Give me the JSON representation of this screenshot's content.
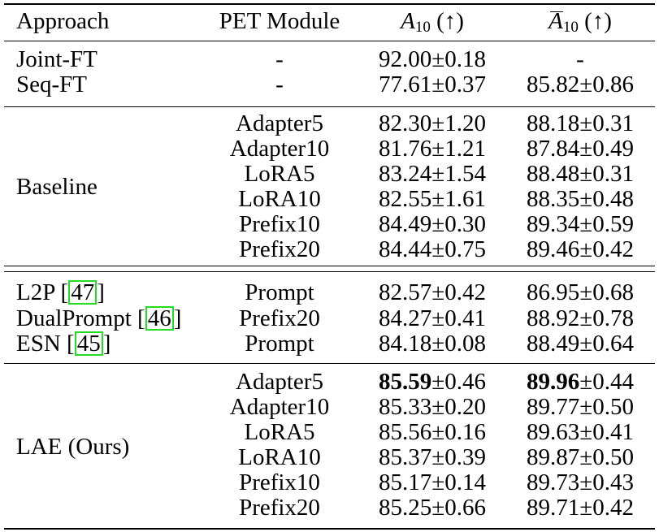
{
  "table": {
    "headers": {
      "approach": "Approach",
      "pet_module": "PET Module",
      "a10_letter": "A",
      "a10_sub": "10",
      "a10_arrow": "(↑)",
      "abar10_letter": "A",
      "abar10_sub": "10",
      "abar10_arrow": "(↑)"
    },
    "groups": [
      {
        "label": "",
        "rows": [
          {
            "approach": "Joint-FT",
            "module": "-",
            "a10_mean": "92.00",
            "a10_std": "0.18",
            "abar10": "-"
          },
          {
            "approach": "Seq-FT",
            "module": "-",
            "a10_mean": "77.61",
            "a10_std": "0.37",
            "abar10_mean": "85.82",
            "abar10_std": "0.86"
          }
        ]
      },
      {
        "label": "Baseline",
        "rows": [
          {
            "module": "Adapter5",
            "a10_mean": "82.30",
            "a10_std": "1.20",
            "abar10_mean": "88.18",
            "abar10_std": "0.31"
          },
          {
            "module": "Adapter10",
            "a10_mean": "81.76",
            "a10_std": "1.21",
            "abar10_mean": "87.84",
            "abar10_std": "0.49"
          },
          {
            "module": "LoRA5",
            "a10_mean": "83.24",
            "a10_std": "1.54",
            "abar10_mean": "88.48",
            "abar10_std": "0.31"
          },
          {
            "module": "LoRA10",
            "a10_mean": "82.55",
            "a10_std": "1.61",
            "abar10_mean": "88.35",
            "abar10_std": "0.48"
          },
          {
            "module": "Prefix10",
            "a10_mean": "84.49",
            "a10_std": "0.30",
            "abar10_mean": "89.34",
            "abar10_std": "0.59"
          },
          {
            "module": "Prefix20",
            "a10_mean": "84.44",
            "a10_std": "0.75",
            "abar10_mean": "89.46",
            "abar10_std": "0.42"
          }
        ]
      },
      {
        "label": "",
        "rows": [
          {
            "approach": "L2P",
            "cite": "47",
            "module": "Prompt",
            "a10_mean": "82.57",
            "a10_std": "0.42",
            "abar10_mean": "86.95",
            "abar10_std": "0.68"
          },
          {
            "approach": "DualPrompt",
            "cite": "46",
            "module": "Prefix20",
            "a10_mean": "84.27",
            "a10_std": "0.41",
            "abar10_mean": "88.92",
            "abar10_std": "0.78"
          },
          {
            "approach": "ESN",
            "cite": "45",
            "module": "Prompt",
            "a10_mean": "84.18",
            "a10_std": "0.08",
            "abar10_mean": "88.49",
            "abar10_std": "0.64"
          }
        ]
      },
      {
        "label": "LAE (Ours)",
        "rows": [
          {
            "module": "Adapter5",
            "a10_mean": "85.59",
            "a10_std": "0.46",
            "abar10_mean": "89.96",
            "abar10_std": "0.44"
          },
          {
            "module": "Adapter10",
            "a10_mean": "85.33",
            "a10_std": "0.20",
            "abar10_mean": "89.77",
            "abar10_std": "0.50"
          },
          {
            "module": "LoRA5",
            "a10_mean": "85.56",
            "a10_std": "0.16",
            "abar10_mean": "89.63",
            "abar10_std": "0.41"
          },
          {
            "module": "LoRA10",
            "a10_mean": "85.37",
            "a10_std": "0.39",
            "abar10_mean": "89.87",
            "abar10_std": "0.50"
          },
          {
            "module": "Prefix10",
            "a10_mean": "85.17",
            "a10_std": "0.14",
            "abar10_mean": "89.73",
            "abar10_std": "0.43"
          },
          {
            "module": "Prefix20",
            "a10_mean": "85.25",
            "a10_std": "0.66",
            "abar10_mean": "89.71",
            "abar10_std": "0.42"
          }
        ]
      }
    ],
    "pm": "±",
    "cite_open": "[",
    "cite_close": "]"
  }
}
